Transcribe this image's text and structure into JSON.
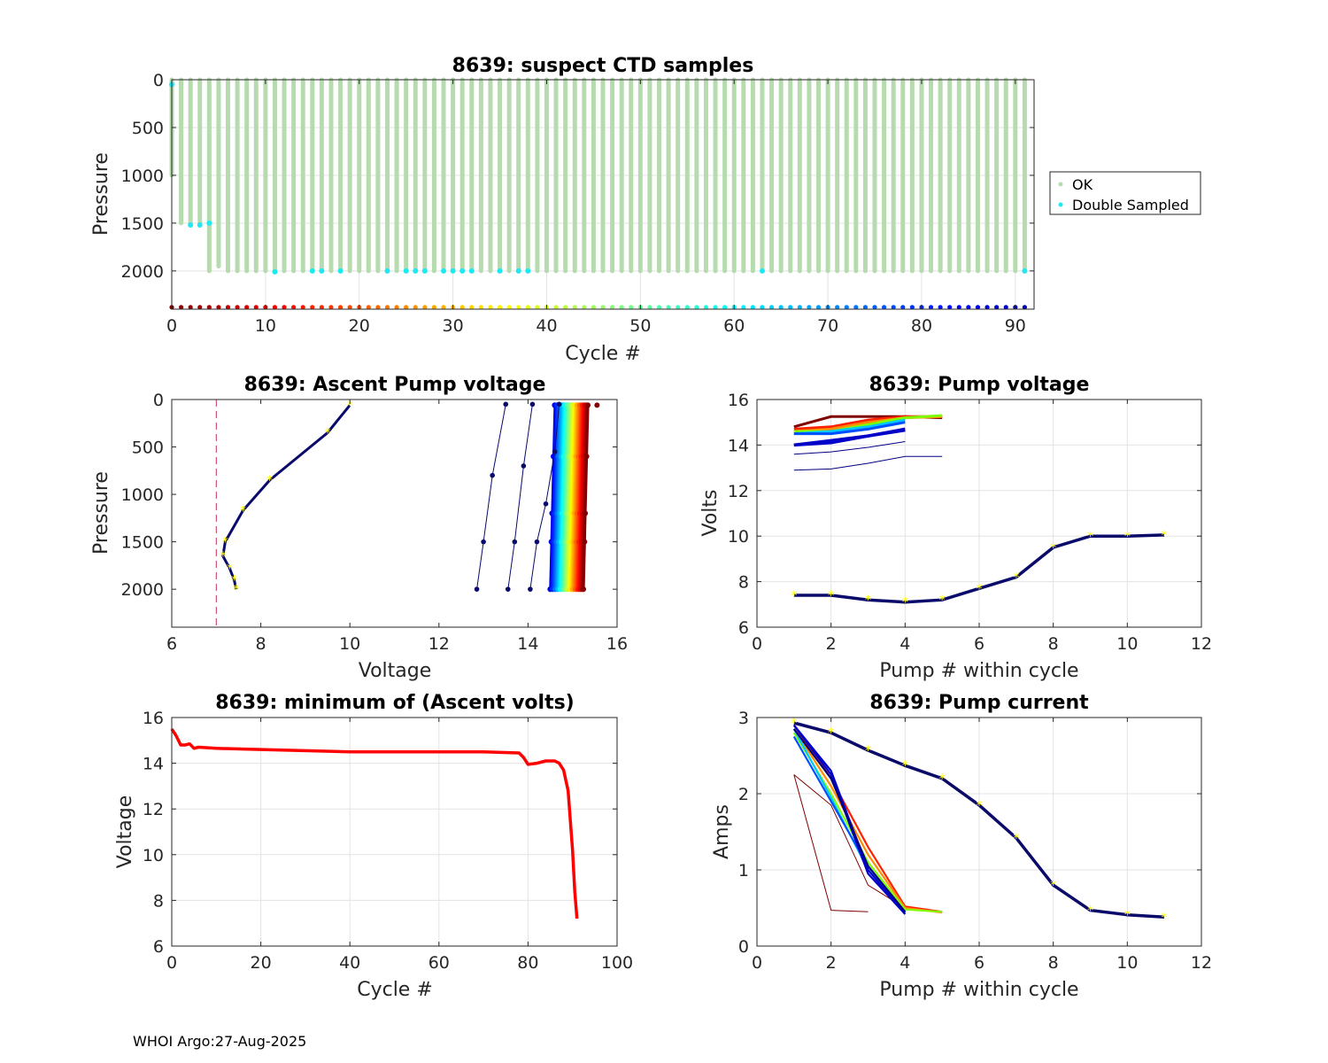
{
  "footer": "WHOI Argo:27-Aug-2025",
  "colors": {
    "ok": "#b6dbae",
    "double_sampled": "#1ee8f0",
    "threshold": "#c0305a",
    "navy": "#0a0a6b",
    "marker": "#ffff00",
    "min_volts": "#ff0000"
  },
  "chart_data": [
    {
      "id": "suspect",
      "type": "scatter",
      "title": "8639: suspect CTD samples",
      "xlabel": "Cycle #",
      "ylabel": "Pressure",
      "xlim": [
        0,
        92
      ],
      "ylim": [
        2400,
        0
      ],
      "xticks": [
        0,
        10,
        20,
        30,
        40,
        50,
        60,
        70,
        80,
        90
      ],
      "yticks": [
        0,
        500,
        1000,
        1500,
        2000
      ],
      "legend": [
        "OK",
        "Double Sampled"
      ],
      "legend_position": "outside-right",
      "ok_profile_depths": [
        1000,
        1500,
        1500,
        1500,
        2000,
        1950,
        2000
      ],
      "ok_default_depth": 2000,
      "double_sampled_points": [
        [
          0,
          50
        ],
        [
          2,
          1520
        ],
        [
          3,
          1520
        ],
        [
          4,
          1500
        ],
        [
          11,
          2010
        ],
        [
          15,
          2000
        ],
        [
          16,
          2000
        ],
        [
          18,
          2000
        ],
        [
          23,
          2000
        ],
        [
          25,
          2000
        ],
        [
          26,
          2000
        ],
        [
          27,
          2000
        ],
        [
          29,
          2000
        ],
        [
          30,
          2000
        ],
        [
          31,
          2000
        ],
        [
          32,
          2000
        ],
        [
          35,
          2000
        ],
        [
          37,
          2000
        ],
        [
          38,
          2000
        ],
        [
          63,
          2000
        ],
        [
          91,
          2000
        ]
      ],
      "cycle_marker_pressure": 2380
    },
    {
      "id": "ascent",
      "type": "line",
      "title": "8639: Ascent Pump voltage",
      "xlabel": "Voltage",
      "ylabel": "Pressure",
      "xlim": [
        6,
        16
      ],
      "ylim": [
        2400,
        0
      ],
      "xticks": [
        6,
        8,
        10,
        12,
        14,
        16
      ],
      "yticks": [
        0,
        500,
        1000,
        1500,
        2000
      ],
      "threshold_voltage": 7,
      "low_profile": {
        "voltage": [
          10.0,
          9.5,
          8.2,
          7.6,
          7.2,
          7.15,
          7.3,
          7.4,
          7.45
        ],
        "pressure": [
          60,
          350,
          850,
          1170,
          1500,
          1650,
          1780,
          1900,
          2000
        ]
      },
      "navy_profiles": [
        {
          "voltage": [
            13.5,
            13.2,
            13.0,
            12.85
          ],
          "pressure": [
            50,
            800,
            1500,
            2000
          ]
        },
        {
          "voltage": [
            14.1,
            13.9,
            13.7,
            13.55
          ],
          "pressure": [
            50,
            700,
            1500,
            2000
          ]
        },
        {
          "voltage": [
            14.7,
            14.6,
            14.4,
            14.2,
            14.05
          ],
          "pressure": [
            50,
            550,
            1100,
            1500,
            2000
          ]
        }
      ],
      "bundle": {
        "voltage_start": [
          14.6,
          15.35
        ],
        "voltage_end": [
          14.5,
          15.25
        ],
        "pressure": [
          60,
          600,
          1200,
          1500,
          2000
        ]
      },
      "outlier_point": [
        15.55,
        60
      ]
    },
    {
      "id": "pumpv",
      "type": "line",
      "title": "8639: Pump voltage",
      "xlabel": "Pump # within cycle",
      "ylabel": "Volts",
      "xlim": [
        0,
        12
      ],
      "ylim": [
        6,
        16
      ],
      "xticks": [
        0,
        2,
        4,
        6,
        8,
        10,
        12
      ],
      "yticks": [
        6,
        8,
        10,
        12,
        14,
        16
      ],
      "long_cycle": {
        "x": [
          1,
          2,
          3,
          4,
          5,
          6,
          7,
          8,
          9,
          10,
          11
        ],
        "y": [
          7.4,
          7.4,
          7.2,
          7.1,
          7.2,
          7.7,
          8.2,
          9.5,
          10.0,
          10.0,
          10.05
        ]
      },
      "short_cycles": [
        {
          "y": [
            14.8,
            15.25,
            15.25,
            15.25,
            15.2
          ],
          "color": "#800000"
        },
        {
          "y": [
            14.7,
            14.8,
            15.1,
            15.25,
            15.25
          ],
          "color": "#ff2000"
        },
        {
          "y": [
            14.6,
            14.7,
            15.0,
            15.2,
            15.25
          ],
          "color": "#ff8c00"
        },
        {
          "y": [
            14.6,
            14.6,
            14.9,
            15.2,
            15.3
          ],
          "color": "#80ff00"
        },
        {
          "y": [
            14.5,
            14.6,
            14.8,
            15.1
          ],
          "color": "#00c8ff"
        },
        {
          "y": [
            14.5,
            14.5,
            14.7,
            15.0
          ],
          "color": "#0050ff"
        },
        {
          "y": [
            14.0,
            14.1,
            14.4,
            14.7
          ],
          "color": "#0000c8"
        },
        {
          "y": [
            14.0,
            14.2,
            14.4,
            14.65
          ],
          "color": "#0000c8"
        },
        {
          "y": [
            13.6,
            13.7,
            13.9,
            14.15
          ],
          "color": "#000080"
        },
        {
          "y": [
            12.9,
            12.95,
            13.2,
            13.5,
            13.5
          ],
          "color": "#000080"
        }
      ]
    },
    {
      "id": "minv",
      "type": "line",
      "title": "8639: minimum of (Ascent volts)",
      "xlabel": "Cycle #",
      "ylabel": "Voltage",
      "xlim": [
        0,
        100
      ],
      "ylim": [
        6,
        16
      ],
      "xticks": [
        0,
        20,
        40,
        60,
        80,
        100
      ],
      "yticks": [
        6,
        8,
        10,
        12,
        14,
        16
      ],
      "x": [
        0,
        1,
        2,
        3,
        4,
        5,
        6,
        10,
        20,
        40,
        60,
        70,
        78,
        79,
        80,
        82,
        84,
        86,
        87,
        88,
        89,
        90,
        90.5,
        91
      ],
      "y": [
        15.5,
        15.2,
        14.8,
        14.8,
        14.85,
        14.65,
        14.7,
        14.65,
        14.6,
        14.5,
        14.5,
        14.5,
        14.45,
        14.25,
        13.95,
        14.0,
        14.1,
        14.1,
        14.0,
        13.7,
        12.8,
        10.2,
        8.4,
        7.2
      ]
    },
    {
      "id": "pumpc",
      "type": "line",
      "title": "8639: Pump current",
      "xlabel": "Pump # within cycle",
      "ylabel": "Amps",
      "xlim": [
        0,
        12
      ],
      "ylim": [
        0,
        3
      ],
      "xticks": [
        0,
        2,
        4,
        6,
        8,
        10,
        12
      ],
      "yticks": [
        0,
        1,
        2,
        3
      ],
      "long_cycle": {
        "x": [
          1,
          2,
          3,
          4,
          5,
          6,
          7,
          8,
          9,
          10,
          11
        ],
        "y": [
          2.93,
          2.8,
          2.57,
          2.37,
          2.2,
          1.85,
          1.42,
          0.8,
          0.47,
          0.41,
          0.38
        ]
      },
      "short_cycles": [
        {
          "y": [
            2.25,
            0.47,
            0.45
          ],
          "color": "#800000"
        },
        {
          "y": [
            2.25,
            1.85,
            0.8,
            0.5
          ],
          "color": "#800000"
        },
        {
          "y": [
            2.9,
            2.2,
            1.3,
            0.52,
            0.45
          ],
          "color": "#ff2000"
        },
        {
          "y": [
            2.85,
            2.1,
            1.2,
            0.5,
            0.44
          ],
          "color": "#ff8c00"
        },
        {
          "y": [
            2.8,
            2.0,
            1.1,
            0.48,
            0.45
          ],
          "color": "#80ff00"
        },
        {
          "y": [
            2.85,
            1.95,
            1.0,
            0.45
          ],
          "color": "#00c8ff"
        },
        {
          "y": [
            2.75,
            1.9,
            1.05,
            0.44
          ],
          "color": "#0050ff"
        },
        {
          "y": [
            2.9,
            2.3,
            1.0,
            0.42
          ],
          "color": "#0000c8"
        },
        {
          "y": [
            2.9,
            2.25,
            0.95,
            0.42
          ],
          "color": "#0000c8"
        },
        {
          "y": [
            2.85,
            2.2,
            1.05,
            0.45
          ],
          "color": "#000080"
        }
      ]
    }
  ]
}
